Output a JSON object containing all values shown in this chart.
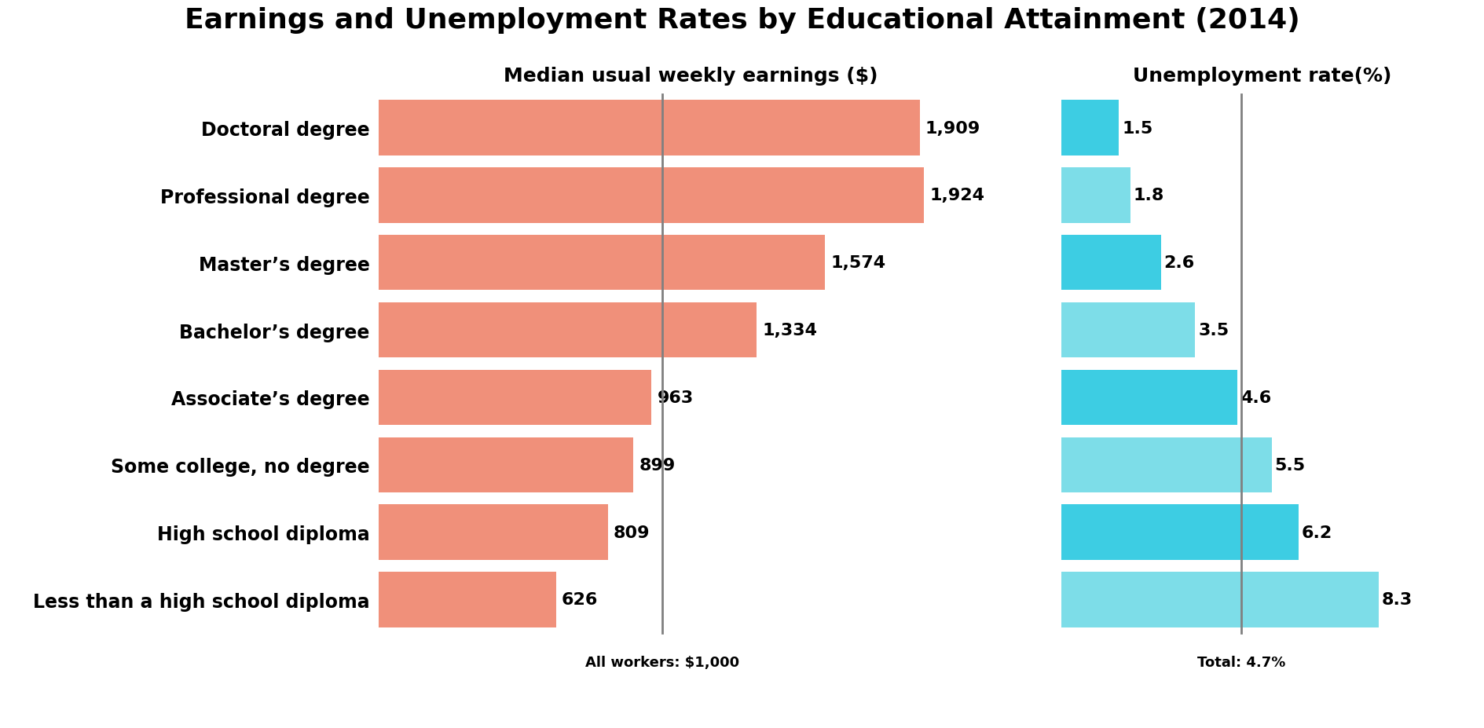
{
  "title": "Earnings and Unemployment Rates by Educational Attainment (2014)",
  "subtitle_left": "Median usual weekly earnings ($)",
  "subtitle_right": "Unemployment rate(%)",
  "categories": [
    "Doctoral degree",
    "Professional degree",
    "Master’s degree",
    "Bachelor’s degree",
    "Associate’s degree",
    "Some college, no degree",
    "High school diploma",
    "Less than a high school diploma"
  ],
  "earnings": [
    1909,
    1924,
    1574,
    1334,
    963,
    899,
    809,
    626
  ],
  "unemployment": [
    1.5,
    1.8,
    2.6,
    3.5,
    4.6,
    5.5,
    6.2,
    8.3
  ],
  "earnings_color": "#F0907A",
  "unemployment_colors": [
    "#3DCDE3",
    "#7DDDE8",
    "#3DCDE3",
    "#7DDDE8",
    "#3DCDE3",
    "#7DDDE8",
    "#3DCDE3",
    "#7DDDE8"
  ],
  "earnings_ref_line": 1000,
  "unemployment_ref_line": 4.7,
  "earnings_ref_label": "All workers: $1,000",
  "unemployment_ref_label": "Total: 4.7%",
  "bar_height": 0.82,
  "title_fontsize": 26,
  "subtitle_fontsize": 18,
  "tick_fontsize": 17,
  "value_fontsize": 16,
  "ref_label_fontsize": 13,
  "background_color": "#FFFFFF"
}
